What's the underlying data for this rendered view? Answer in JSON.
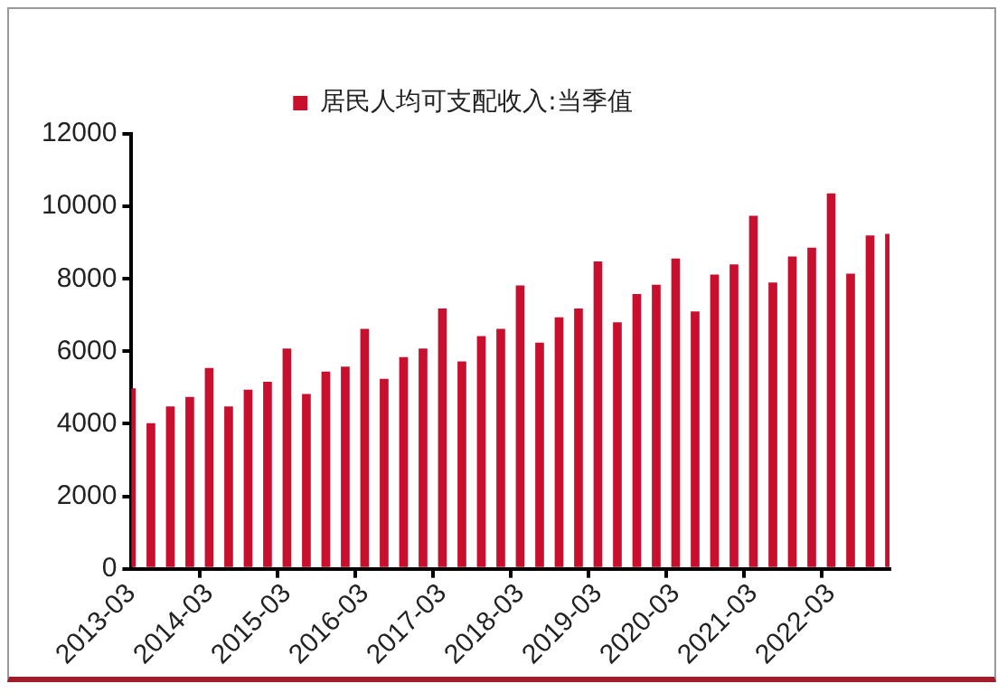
{
  "chart_data": {
    "type": "bar",
    "categories": [
      "2013-03",
      null,
      null,
      null,
      "2014-03",
      null,
      null,
      null,
      "2015-03",
      null,
      null,
      null,
      "2016-03",
      null,
      null,
      null,
      "2017-03",
      null,
      null,
      null,
      "2018-03",
      null,
      null,
      null,
      "2019-03",
      null,
      null,
      null,
      "2020-03",
      null,
      null,
      null,
      "2021-03",
      null,
      null,
      null,
      "2022-03",
      null,
      null,
      null
    ],
    "series": [
      {
        "name": "居民人均可支配收入:当季值",
        "color": "#c8102e",
        "values": [
          4980,
          4020,
          4480,
          4740,
          5540,
          4480,
          4940,
          5160,
          6080,
          4820,
          5440,
          5580,
          6620,
          5240,
          5840,
          6080,
          7180,
          5720,
          6420,
          6620,
          7820,
          6240,
          6940,
          7180,
          8480,
          6800,
          7580,
          7840,
          8560,
          7100,
          8120,
          8400,
          9740,
          7900,
          8620,
          8860,
          10360,
          8140,
          9200,
          9240
        ]
      }
    ],
    "ylim": [
      0,
      12000
    ],
    "yticks": [
      0,
      2000,
      4000,
      6000,
      8000,
      10000,
      12000
    ],
    "grid": false,
    "legend": "top"
  }
}
